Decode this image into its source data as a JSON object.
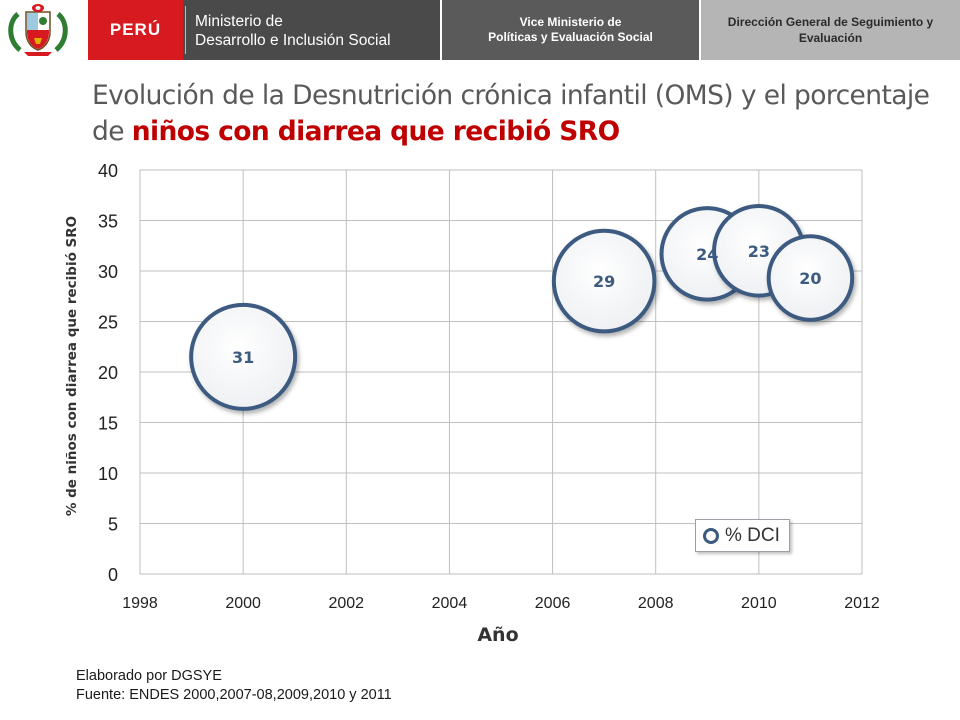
{
  "header": {
    "country": "PERÚ",
    "ministry_line1": "Ministerio de",
    "ministry_line2": "Desarrollo e Inclusión Social",
    "vice_line1": "Vice Ministerio de",
    "vice_line2": "Políticas y Evaluación Social",
    "dir_line1": "Dirección General de Seguimiento y",
    "dir_line2": "Evaluación",
    "colors": {
      "red": "#d71920",
      "dark": "#4a4a4a",
      "mid": "#5a5a5a",
      "light": "#b5b5b5"
    }
  },
  "title": {
    "part1": "Evolución de la Desnutrición crónica infantil (OMS)  y el porcentaje de ",
    "highlight": "niños con diarrea que recibió SRO"
  },
  "chart_data": {
    "type": "scatter",
    "subtype": "bubble",
    "xlabel": "Año",
    "ylabel": "% de niños con diarrea que recibió SRO",
    "xlim": [
      1998,
      2012
    ],
    "ylim": [
      0,
      40
    ],
    "x_ticks": [
      1998,
      2000,
      2002,
      2004,
      2006,
      2008,
      2010,
      2012
    ],
    "y_ticks": [
      0,
      5,
      10,
      15,
      20,
      25,
      30,
      35,
      40
    ],
    "grid": true,
    "legend": "bottom-right",
    "series": [
      {
        "name": "% DCI",
        "color": "#3d5a80",
        "points": [
          {
            "x": 2000,
            "y": 21.5,
            "size": 31,
            "label": "31"
          },
          {
            "x": 2007,
            "y": 29.0,
            "size": 29,
            "label": "29"
          },
          {
            "x": 2009,
            "y": 31.7,
            "size": 24,
            "label": "24"
          },
          {
            "x": 2010,
            "y": 32.0,
            "size": 23,
            "label": "23"
          },
          {
            "x": 2011,
            "y": 29.3,
            "size": 20,
            "label": "20"
          }
        ]
      }
    ]
  },
  "footer": {
    "line1": "Elaborado por DGSYE",
    "line2": "Fuente: ENDES 2000,2007-08,2009,2010 y 2011"
  }
}
